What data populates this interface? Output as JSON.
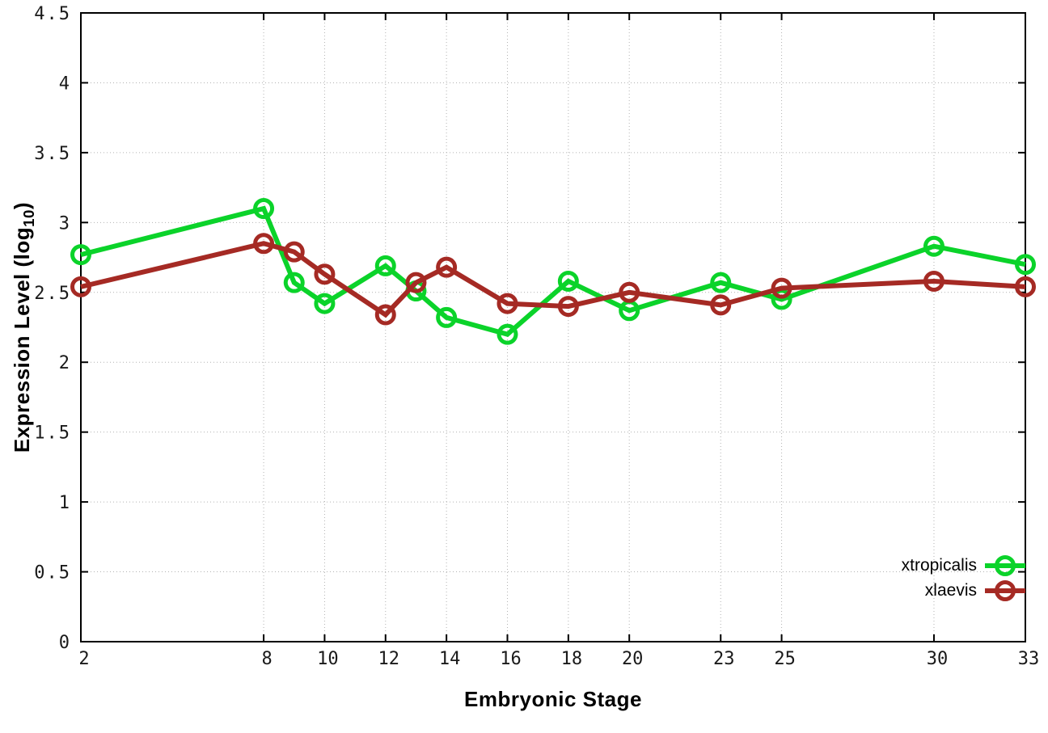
{
  "axes": {
    "x_title": "Embryonic Stage",
    "y_title_main": "Expression Level (log",
    "y_title_sub": "10",
    "y_title_close": ")"
  },
  "colors": {
    "background": "#ffffff",
    "border": "#000000",
    "grid": "#b2b2b2",
    "tick_text": "#1a1a1a",
    "xtropicalis": "#0bd32a",
    "xlaevis": "#a52a24"
  },
  "chart_data": {
    "type": "line",
    "title": "",
    "xlabel": "Embryonic Stage",
    "ylabel": "Expression Level (log10)",
    "xlim": [
      2,
      33
    ],
    "ylim": [
      0,
      4.5
    ],
    "grid": true,
    "legend_position": "bottom-right",
    "x": [
      2,
      8,
      9,
      10,
      12,
      13,
      14,
      16,
      18,
      20,
      23,
      25,
      30,
      33
    ],
    "x_tick_labels": [
      "2",
      "8",
      "10",
      "12",
      "14",
      "16",
      "18",
      "20",
      "23",
      "25",
      "30",
      "33"
    ],
    "x_tick_values": [
      2,
      8,
      10,
      12,
      14,
      16,
      18,
      20,
      23,
      25,
      30,
      33
    ],
    "y_tick_labels": [
      "0",
      "0.5",
      "1",
      "1.5",
      "2",
      "2.5",
      "3",
      "3.5",
      "4",
      "4.5"
    ],
    "y_tick_values": [
      0,
      0.5,
      1,
      1.5,
      2,
      2.5,
      3,
      3.5,
      4,
      4.5
    ],
    "series": [
      {
        "name": "xtropicalis",
        "color": "#0bd32a",
        "values": [
          2.77,
          3.1,
          2.57,
          2.42,
          2.69,
          2.51,
          2.32,
          2.2,
          2.58,
          2.37,
          2.57,
          2.45,
          2.83,
          2.7
        ]
      },
      {
        "name": "xlaevis",
        "color": "#a52a24",
        "values": [
          2.54,
          2.85,
          2.79,
          2.63,
          2.34,
          2.57,
          2.68,
          2.42,
          2.4,
          2.5,
          2.41,
          2.53,
          2.58,
          2.54
        ]
      }
    ]
  }
}
